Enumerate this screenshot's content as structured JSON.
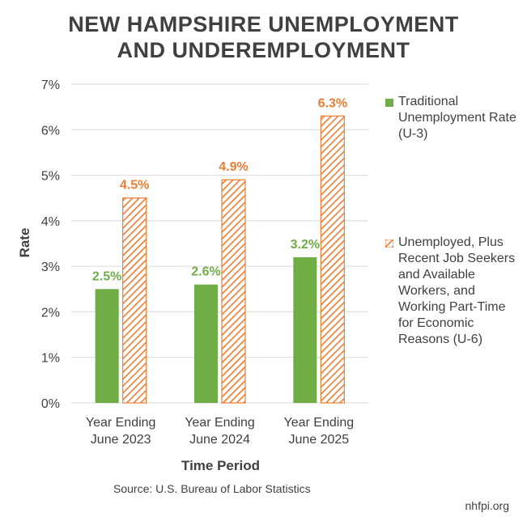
{
  "title_line1": "NEW HAMPSHIRE UNEMPLOYMENT",
  "title_line2": "AND UNDEREMPLOYMENT",
  "source": "Source: U.S. Bureau of Labor Statistics",
  "site": "nhfpi.org",
  "colors": {
    "u3": "#70AD47",
    "u6": "#ED7D31",
    "grid": "#D9D9D9",
    "text": "#404040"
  },
  "chart_data": {
    "type": "bar",
    "categories": [
      [
        "Year Ending",
        "June 2023"
      ],
      [
        "Year Ending",
        "June 2024"
      ],
      [
        "Year Ending",
        "June 2025"
      ]
    ],
    "series": [
      {
        "name": "Traditional Unemployment Rate (U-3)",
        "values": [
          2.5,
          2.6,
          3.2
        ],
        "labels": [
          "2.5%",
          "2.6%",
          "3.2%"
        ],
        "pattern": "solid"
      },
      {
        "name": "Unemployed, Plus Recent Job Seekers and Available Workers, and Working Part-Time for Economic Reasons (U-6)",
        "values": [
          4.5,
          4.9,
          6.3
        ],
        "labels": [
          "4.5%",
          "4.9%",
          "6.3%"
        ],
        "pattern": "diagonal-hatch"
      }
    ],
    "xlabel": "Time Period",
    "ylabel": "Rate",
    "ylim": [
      0,
      7
    ],
    "yticks": [
      "0%",
      "1%",
      "2%",
      "3%",
      "4%",
      "5%",
      "6%",
      "7%"
    ],
    "grid": true,
    "legend_position": "right"
  }
}
